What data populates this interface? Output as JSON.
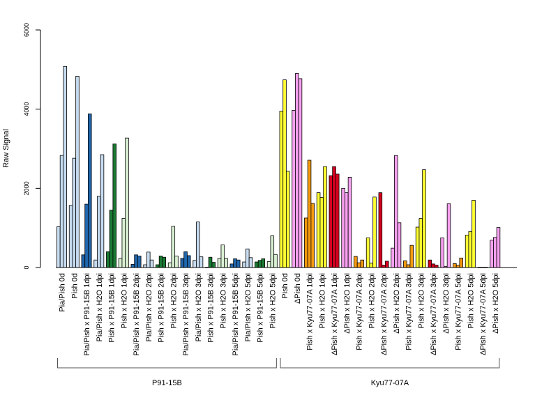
{
  "chart_data": {
    "type": "bar",
    "ylabel": "Raw Signal",
    "ylim": [
      0,
      6000
    ],
    "yticks": [
      0,
      2000,
      4000,
      6000
    ],
    "grid": false,
    "categories": [
      "Pia/Pish 0d",
      "Pish 0d",
      "Pia/Pish x P91-15B 1dpi",
      "Pia/Pish x H2O 1dpi",
      "Pish x P91-15B 1dpi",
      "Pish x H2O 1dpi",
      "Pia/Pish x P91-15B 2dpi",
      "Pia/Pish x H2O 2dpi",
      "Pish x P91-15B 2dpi",
      "Pish x H2O 2dpi",
      "Pia/Pish x P91-15B 3dpi",
      "Pia/Pish x H2O 3dpi",
      "Pish x P91-15B 3dpi",
      "Pish x H2O 3dpi",
      "Pia/Pish x P91-15B 5dpi",
      "Pia/Pish x H2O 5dpi",
      "Pish x P91-15B 5dpi",
      "Pish x H2O 5dpi",
      "Pish 0d",
      "ΔPish 0d",
      "Pish x Kyu77-07A 1dpi",
      "Pish x H2O 1dpi",
      "ΔPish x Kyu77-07A 1dpi",
      "ΔPish x H2O 1dpi",
      "Pish x Kyu77-07A 2dpi",
      "Pish x H2O 2dpi",
      "ΔPish x Kyu77-07A 2dpi",
      "ΔPish x H2O 2dpi",
      "Pish x Kyu77-07A 3dpi",
      "Pish x H2O 3dpi",
      "ΔPish x Kyu77-07A 3dpi",
      "ΔPish x H2O 3dpi",
      "Pish x Kyu77-07A 5dpi",
      "Pish x H2O 5dpi",
      "ΔPish x Kyu77-07A 5dpi",
      "ΔPish x H2O 5dpi"
    ],
    "colors": [
      "#c6dbef",
      "#c6dbef",
      "#2166ac",
      "#c6dbef",
      "#1a7a34",
      "#d9f0d3",
      "#2166ac",
      "#c6dbef",
      "#1a7a34",
      "#d9f0d3",
      "#2166ac",
      "#c6dbef",
      "#1a7a34",
      "#d9f0d3",
      "#2166ac",
      "#c6dbef",
      "#1a7a34",
      "#d9f0d3",
      "#ffff33",
      "#f7a1f0",
      "#f59a10",
      "#ffff33",
      "#d7001f",
      "#f7a1f0",
      "#f59a10",
      "#ffff33",
      "#d7001f",
      "#f7a1f0",
      "#f59a10",
      "#ffff33",
      "#d7001f",
      "#f7a1f0",
      "#f59a10",
      "#ffff33",
      "#d7001f",
      "#f7a1f0"
    ],
    "values": [
      [
        1030,
        2830,
        5080
      ],
      [
        1570,
        2760,
        4830
      ],
      [
        320,
        1600,
        3880
      ],
      [
        190,
        1800,
        2850
      ],
      [
        400,
        1450,
        3120
      ],
      [
        230,
        1240,
        3270
      ],
      [
        80,
        320,
        290
      ],
      [
        70,
        390,
        190
      ],
      [
        70,
        290,
        260
      ],
      [
        120,
        1040,
        290
      ],
      [
        230,
        400,
        300
      ],
      [
        180,
        1150,
        270
      ],
      [
        10,
        260,
        130
      ],
      [
        230,
        570,
        230
      ],
      [
        90,
        220,
        190
      ],
      [
        140,
        470,
        250
      ],
      [
        140,
        180,
        220
      ],
      [
        150,
        800,
        330
      ],
      [
        3950,
        4740,
        2430
      ],
      [
        3970,
        4900,
        4770
      ],
      [
        1250,
        2710,
        1620
      ],
      [
        1890,
        1770,
        2550
      ],
      [
        2320,
        2550,
        2360
      ],
      [
        2000,
        1890,
        2280
      ],
      [
        280,
        120,
        190
      ],
      [
        750,
        110,
        1780
      ],
      [
        1890,
        60,
        160
      ],
      [
        490,
        2830,
        1130
      ],
      [
        170,
        70,
        560
      ],
      [
        1020,
        1240,
        2470
      ],
      [
        190,
        90,
        60
      ],
      [
        750,
        30,
        1610
      ],
      [
        100,
        60,
        240
      ],
      [
        820,
        910,
        1700
      ],
      [
        10,
        10,
        10
      ],
      [
        690,
        760,
        1010
      ]
    ],
    "groups": [
      {
        "label": "P91-15B",
        "from": 0,
        "to": 17
      },
      {
        "label": "Kyu77-07A",
        "from": 18,
        "to": 35
      }
    ]
  }
}
